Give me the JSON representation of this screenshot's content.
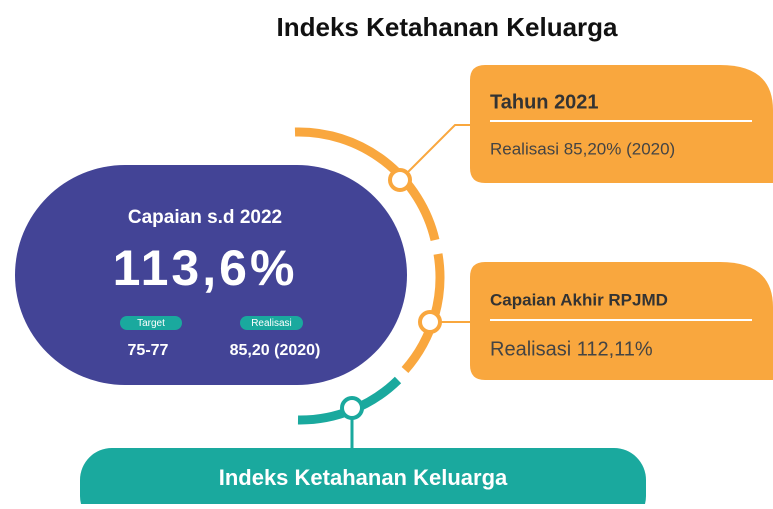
{
  "header": {
    "title": "Indeks Ketahanan Keluarga"
  },
  "main_card": {
    "title": "Capaian s.d 2022",
    "value": "113,6%",
    "target": {
      "label": "Target",
      "value": "75-77"
    },
    "realisasi": {
      "label": "Realisasi",
      "value": "85,20 (2020)"
    }
  },
  "cards": [
    {
      "title": "Tahun 2021",
      "text": "Realisasi 85,20% (2020)"
    },
    {
      "title": "Capaian Akhir RPJMD",
      "text": "Realisasi 112,11%"
    }
  ],
  "footer": {
    "label": "Indeks Ketahanan Keluarga"
  }
}
